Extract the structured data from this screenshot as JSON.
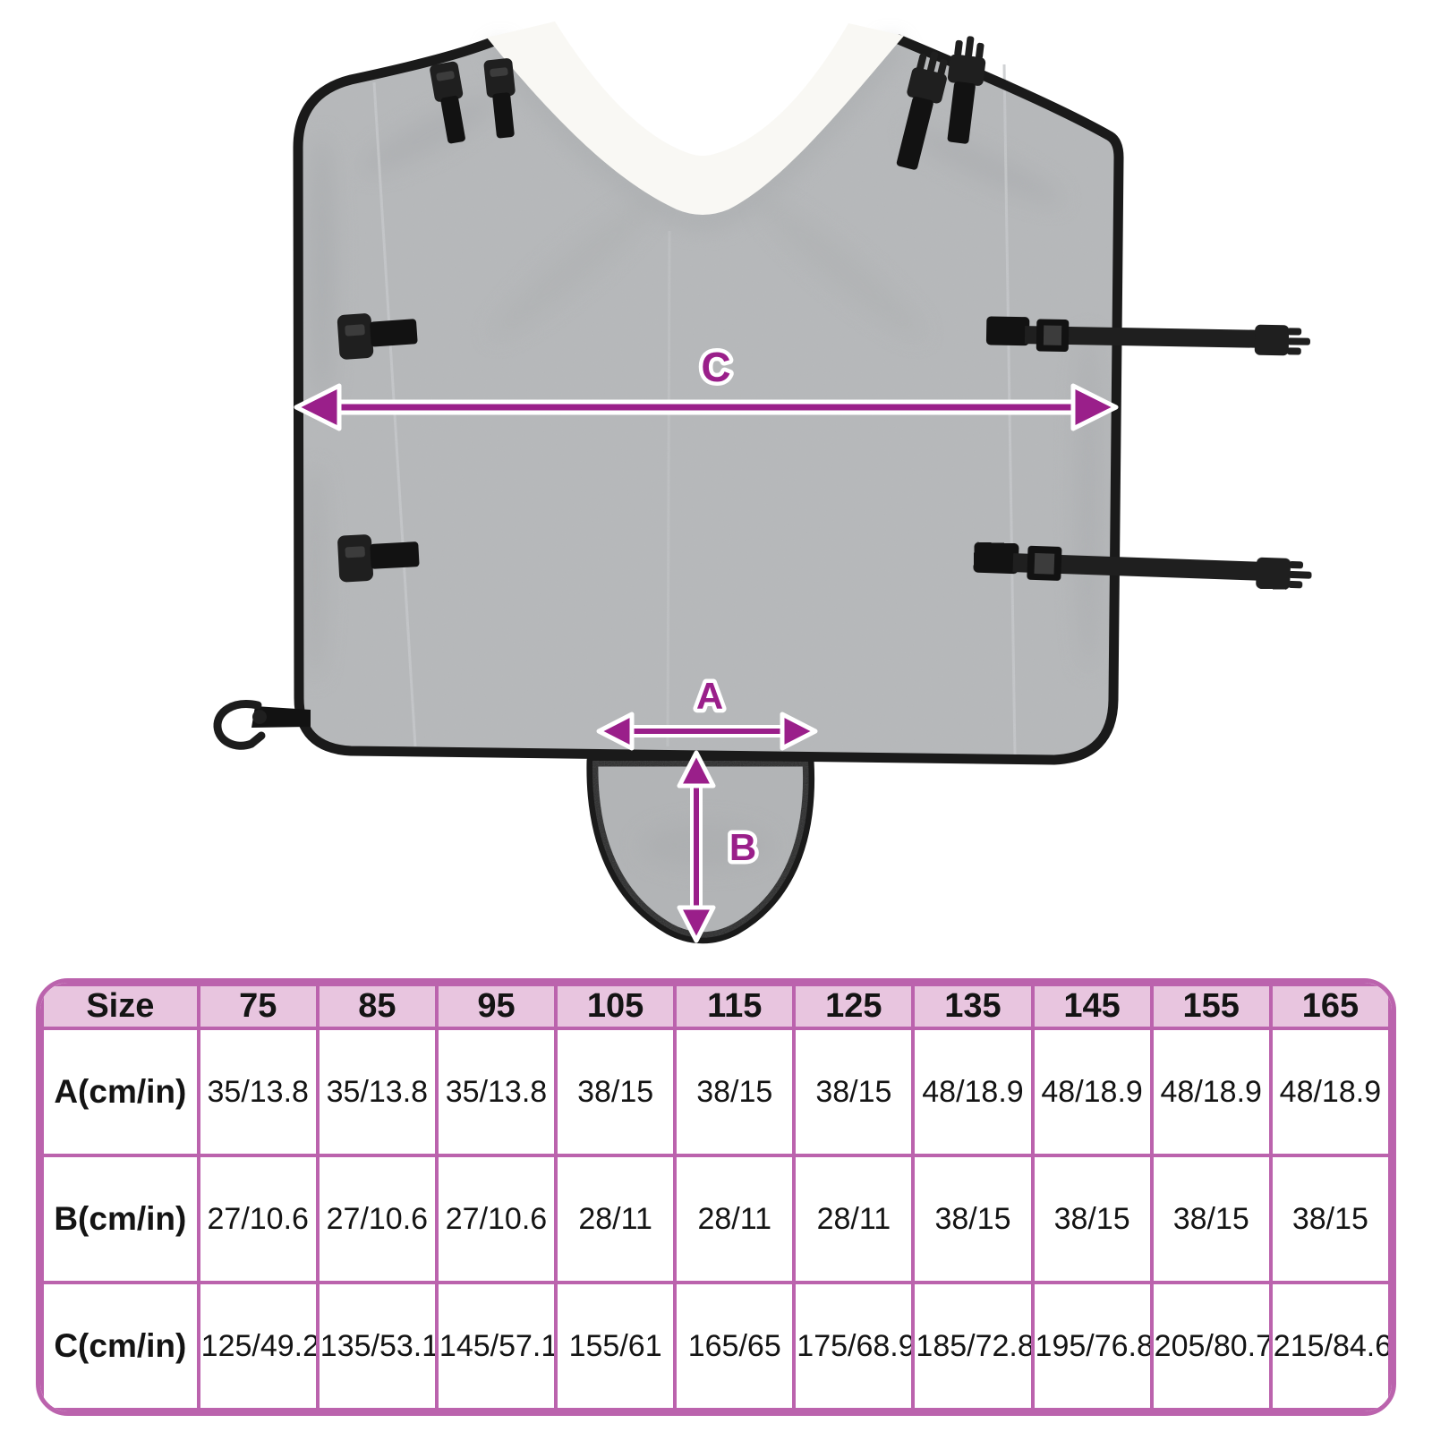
{
  "diagram": {
    "labels": {
      "a": "A",
      "b": "B",
      "c": "C"
    },
    "colors": {
      "arrow": "#9a1f8a",
      "fabric": "#b9bbbd",
      "fabric_dark": "#b4b6b8",
      "binding": "#1a1a1a",
      "strap": "#1f1f1f",
      "fleece": "#f9f8f4",
      "seam": "#cbcdcf"
    },
    "parts": {
      "body": "horse-rug-body",
      "collar": "fleece-collar",
      "flap": "tail-flap",
      "straps": "buckle-straps"
    }
  },
  "size_table": {
    "header_row": [
      "Size",
      "75",
      "85",
      "95",
      "105",
      "115",
      "125",
      "135",
      "145",
      "155",
      "165"
    ],
    "rows": [
      {
        "label": "A(cm/in)",
        "values": [
          "35/13.8",
          "35/13.8",
          "35/13.8",
          "38/15",
          "38/15",
          "38/15",
          "48/18.9",
          "48/18.9",
          "48/18.9",
          "48/18.9"
        ]
      },
      {
        "label": "B(cm/in)",
        "values": [
          "27/10.6",
          "27/10.6",
          "27/10.6",
          "28/11",
          "28/11",
          "28/11",
          "38/15",
          "38/15",
          "38/15",
          "38/15"
        ]
      },
      {
        "label": "C(cm/in)",
        "values": [
          "125/49.2",
          "135/53.1",
          "145/57.1",
          "155/61",
          "165/65",
          "175/68.9",
          "185/72.8",
          "195/76.8",
          "205/80.7",
          "215/84.6"
        ]
      }
    ],
    "colors": {
      "grid": "#bb63ad",
      "header_fill": "#e8c5df",
      "cell_fill": "#ffffff",
      "text": "#141414"
    }
  },
  "chart_data": {
    "type": "table",
    "columns": [
      "Size",
      "75",
      "85",
      "95",
      "105",
      "115",
      "125",
      "135",
      "145",
      "155",
      "165"
    ],
    "rows": [
      [
        "A(cm/in)",
        "35/13.8",
        "35/13.8",
        "35/13.8",
        "38/15",
        "38/15",
        "38/15",
        "48/18.9",
        "48/18.9",
        "48/18.9",
        "48/18.9"
      ],
      [
        "B(cm/in)",
        "27/10.6",
        "27/10.6",
        "27/10.6",
        "28/11",
        "28/11",
        "28/11",
        "38/15",
        "38/15",
        "38/15",
        "38/15"
      ],
      [
        "C(cm/in)",
        "125/49.2",
        "135/53.1",
        "145/57.1",
        "155/61",
        "165/65",
        "175/68.9",
        "185/72.8",
        "195/76.8",
        "205/80.7",
        "215/84.6"
      ]
    ]
  }
}
